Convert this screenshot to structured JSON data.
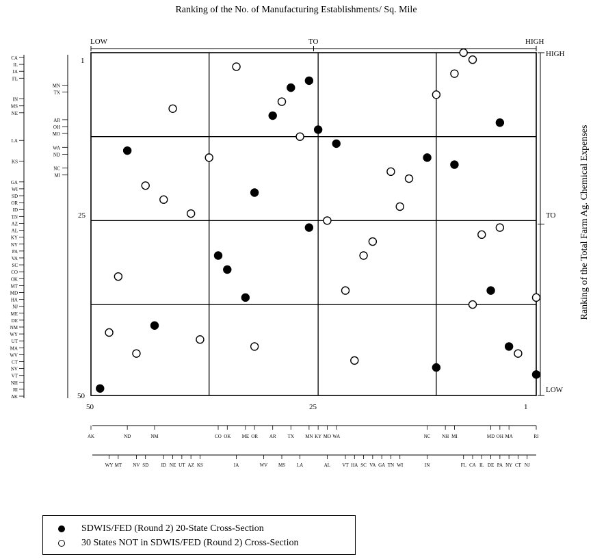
{
  "chart_data": {
    "type": "scatter",
    "title": "Ranking of the No. of Manufacturing Establishments/ Sq. Mile",
    "xlabel": "",
    "ylabel": "Ranking of the Total Farm Ag. Chemical Expenses",
    "top_axis_labels": [
      "LOW",
      "TO",
      "HIGH"
    ],
    "right_axis_labels": [
      "HIGH",
      "TO",
      "LOW"
    ],
    "x_ticks": [
      "50",
      "25",
      "1"
    ],
    "y_ticks": [
      "1",
      "25",
      "50"
    ],
    "xlim": [
      50,
      1
    ],
    "ylim": [
      1,
      50
    ],
    "grid": true,
    "quadrant_lines_x": [
      37,
      25,
      12
    ],
    "quadrant_lines_y": [
      13,
      25,
      37
    ],
    "legend_position": "bottom-left",
    "series": [
      {
        "name": "SDWIS/FED (Round 2) 20-State Cross-Section",
        "marker": "filled",
        "points": [
          {
            "x": 49,
            "y": 49
          },
          {
            "x": 43,
            "y": 40
          },
          {
            "x": 46,
            "y": 15
          },
          {
            "x": 36,
            "y": 30
          },
          {
            "x": 35,
            "y": 32
          },
          {
            "x": 33,
            "y": 36
          },
          {
            "x": 32,
            "y": 21
          },
          {
            "x": 30,
            "y": 10
          },
          {
            "x": 28,
            "y": 6
          },
          {
            "x": 26,
            "y": 5
          },
          {
            "x": 25,
            "y": 12
          },
          {
            "x": 26,
            "y": 26
          },
          {
            "x": 23,
            "y": 14
          },
          {
            "x": 13,
            "y": 16
          },
          {
            "x": 12,
            "y": 46
          },
          {
            "x": 10,
            "y": 17
          },
          {
            "x": 5,
            "y": 11
          },
          {
            "x": 6,
            "y": 35
          },
          {
            "x": 4,
            "y": 43
          },
          {
            "x": 1,
            "y": 47
          }
        ]
      },
      {
        "name": "30 States NOT in SDWIS/FED (Round 2) Cross-Section",
        "marker": "open",
        "points": [
          {
            "x": 48,
            "y": 41
          },
          {
            "x": 47,
            "y": 33
          },
          {
            "x": 45,
            "y": 44
          },
          {
            "x": 44,
            "y": 20
          },
          {
            "x": 42,
            "y": 22
          },
          {
            "x": 41,
            "y": 9
          },
          {
            "x": 39,
            "y": 24
          },
          {
            "x": 38,
            "y": 42
          },
          {
            "x": 37,
            "y": 16
          },
          {
            "x": 34,
            "y": 3
          },
          {
            "x": 32,
            "y": 43
          },
          {
            "x": 29,
            "y": 8
          },
          {
            "x": 27,
            "y": 13
          },
          {
            "x": 24,
            "y": 25
          },
          {
            "x": 22,
            "y": 35
          },
          {
            "x": 21,
            "y": 45
          },
          {
            "x": 20,
            "y": 30
          },
          {
            "x": 19,
            "y": 28
          },
          {
            "x": 17,
            "y": 18
          },
          {
            "x": 16,
            "y": 23
          },
          {
            "x": 15,
            "y": 19
          },
          {
            "x": 12,
            "y": 7
          },
          {
            "x": 10,
            "y": 4
          },
          {
            "x": 9,
            "y": 1
          },
          {
            "x": 8,
            "y": 2
          },
          {
            "x": 8,
            "y": 37
          },
          {
            "x": 7,
            "y": 27
          },
          {
            "x": 5,
            "y": 26
          },
          {
            "x": 3,
            "y": 44
          },
          {
            "x": 1,
            "y": 36
          }
        ]
      }
    ],
    "left_state_scale": [
      {
        "label": "CA",
        "rank": 1
      },
      {
        "label": "IL",
        "rank": 2
      },
      {
        "label": "IA",
        "rank": 3
      },
      {
        "label": "FL",
        "rank": 4
      },
      {
        "label": "IN",
        "rank": 7
      },
      {
        "label": "MS",
        "rank": 8
      },
      {
        "label": "NE",
        "rank": 9
      },
      {
        "label": "LA",
        "rank": 13
      },
      {
        "label": "KS",
        "rank": 16
      },
      {
        "label": "GA",
        "rank": 19
      },
      {
        "label": "WI",
        "rank": 20
      },
      {
        "label": "SD",
        "rank": 21
      },
      {
        "label": "OR",
        "rank": 22
      },
      {
        "label": "ID",
        "rank": 23
      },
      {
        "label": "TN",
        "rank": 24
      },
      {
        "label": "AZ",
        "rank": 25
      },
      {
        "label": "AL",
        "rank": 26
      },
      {
        "label": "KY",
        "rank": 27
      },
      {
        "label": "NY",
        "rank": 28
      },
      {
        "label": "PA",
        "rank": 29
      },
      {
        "label": "VA",
        "rank": 30
      },
      {
        "label": "SC",
        "rank": 31
      },
      {
        "label": "CO",
        "rank": 32
      },
      {
        "label": "OK",
        "rank": 33
      },
      {
        "label": "MT",
        "rank": 34
      },
      {
        "label": "MD",
        "rank": 35
      },
      {
        "label": "HA",
        "rank": 36
      },
      {
        "label": "NJ",
        "rank": 37
      },
      {
        "label": "ME",
        "rank": 38
      },
      {
        "label": "DE",
        "rank": 39
      },
      {
        "label": "NM",
        "rank": 40
      },
      {
        "label": "WY",
        "rank": 41
      },
      {
        "label": "UT",
        "rank": 42
      },
      {
        "label": "MA",
        "rank": 43
      },
      {
        "label": "WV",
        "rank": 44
      },
      {
        "label": "CT",
        "rank": 45
      },
      {
        "label": "NV",
        "rank": 46
      },
      {
        "label": "VT",
        "rank": 47
      },
      {
        "label": "NH",
        "rank": 48
      },
      {
        "label": "RI",
        "rank": 49
      },
      {
        "label": "AK",
        "rank": 50
      }
    ],
    "left_state_scale_inner": [
      {
        "label": "MN",
        "rank": 5
      },
      {
        "label": "TX",
        "rank": 6
      },
      {
        "label": "AR",
        "rank": 10
      },
      {
        "label": "OH",
        "rank": 11
      },
      {
        "label": "MO",
        "rank": 12
      },
      {
        "label": "WA",
        "rank": 14
      },
      {
        "label": "ND",
        "rank": 15
      },
      {
        "label": "NC",
        "rank": 17
      },
      {
        "label": "MI",
        "rank": 18
      }
    ],
    "bottom_state_scale_1": [
      {
        "label": "AK",
        "rank": 50
      },
      {
        "label": "ND",
        "rank": 46
      },
      {
        "label": "NM",
        "rank": 43
      },
      {
        "label": "CO",
        "rank": 36
      },
      {
        "label": "OK",
        "rank": 35
      },
      {
        "label": "ME",
        "rank": 33
      },
      {
        "label": "OR",
        "rank": 32
      },
      {
        "label": "AR",
        "rank": 30
      },
      {
        "label": "TX",
        "rank": 28
      },
      {
        "label": "MN",
        "rank": 26
      },
      {
        "label": "KY",
        "rank": 25
      },
      {
        "label": "MO",
        "rank": 24
      },
      {
        "label": "WA",
        "rank": 23
      },
      {
        "label": "NC",
        "rank": 13
      },
      {
        "label": "NH",
        "rank": 11
      },
      {
        "label": "MI",
        "rank": 10
      },
      {
        "label": "MD",
        "rank": 6
      },
      {
        "label": "OH",
        "rank": 5
      },
      {
        "label": "MA",
        "rank": 4
      },
      {
        "label": "RI",
        "rank": 1
      }
    ],
    "bottom_state_scale_2": [
      {
        "label": "WY",
        "rank": 48
      },
      {
        "label": "MT",
        "rank": 47
      },
      {
        "label": "NV",
        "rank": 45
      },
      {
        "label": "SD",
        "rank": 44
      },
      {
        "label": "ID",
        "rank": 42
      },
      {
        "label": "NE",
        "rank": 41
      },
      {
        "label": "UT",
        "rank": 40
      },
      {
        "label": "AZ",
        "rank": 39
      },
      {
        "label": "KS",
        "rank": 38
      },
      {
        "label": "IA",
        "rank": 34
      },
      {
        "label": "WV",
        "rank": 31
      },
      {
        "label": "MS",
        "rank": 29
      },
      {
        "label": "LA",
        "rank": 27
      },
      {
        "label": "AL",
        "rank": 24
      },
      {
        "label": "VT",
        "rank": 22
      },
      {
        "label": "HA",
        "rank": 21
      },
      {
        "label": "SC",
        "rank": 20
      },
      {
        "label": "VA",
        "rank": 19
      },
      {
        "label": "GA",
        "rank": 18
      },
      {
        "label": "TN",
        "rank": 17
      },
      {
        "label": "WI",
        "rank": 16
      },
      {
        "label": "IN",
        "rank": 13
      },
      {
        "label": "FL",
        "rank": 9
      },
      {
        "label": "CA",
        "rank": 8
      },
      {
        "label": "IL",
        "rank": 7
      },
      {
        "label": "DE",
        "rank": 6
      },
      {
        "label": "PA",
        "rank": 5
      },
      {
        "label": "NY",
        "rank": 4
      },
      {
        "label": "CT",
        "rank": 3
      },
      {
        "label": "NJ",
        "rank": 2
      }
    ]
  },
  "legend": {
    "filled_label": "SDWIS/FED (Round 2) 20-State Cross-Section",
    "open_label": "30 States NOT in SDWIS/FED (Round 2) Cross-Section"
  }
}
